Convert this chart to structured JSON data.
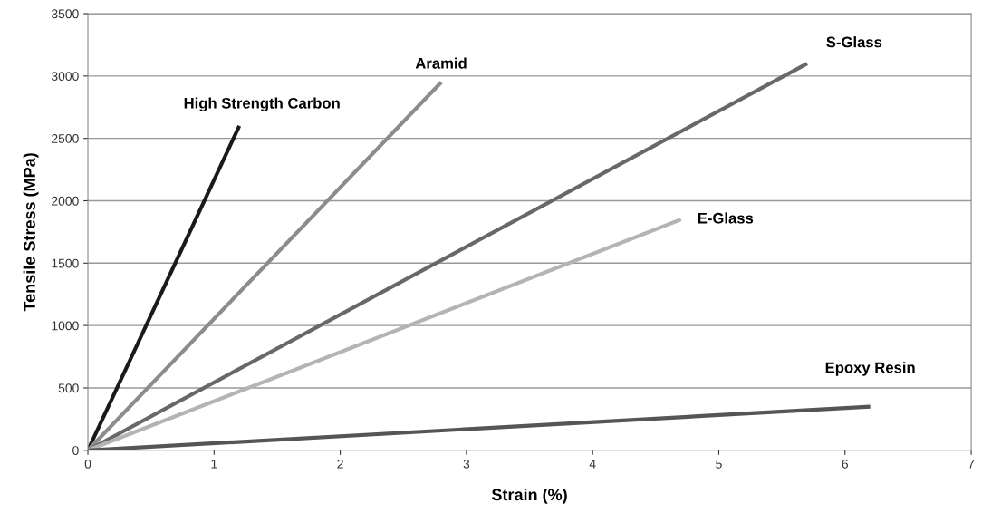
{
  "chart_data": {
    "type": "line",
    "xlabel": "Strain (%)",
    "ylabel": "Tensile Stress (MPa)",
    "xlim": [
      0,
      7
    ],
    "xticks": [
      0,
      1,
      2,
      3,
      4,
      5,
      6,
      7
    ],
    "ylim": [
      0,
      3500
    ],
    "yticks": [
      0,
      500,
      1000,
      1500,
      2000,
      2500,
      3000,
      3500
    ],
    "grid": "y",
    "marker": "none",
    "line_style": "solid",
    "series": [
      {
        "name": "High Strength Carbon",
        "color": "#1a1a1a",
        "x": [
          0,
          1.2
        ],
        "values": [
          0,
          2600
        ]
      },
      {
        "name": "Aramid",
        "color": "#8c8c8c",
        "x": [
          0,
          2.8
        ],
        "values": [
          0,
          2950
        ]
      },
      {
        "name": "S-Glass",
        "color": "#686868",
        "x": [
          0,
          5.7
        ],
        "values": [
          0,
          3100
        ]
      },
      {
        "name": "E-Glass",
        "color": "#b4b4b4",
        "x": [
          0,
          4.7
        ],
        "values": [
          0,
          1850
        ]
      },
      {
        "name": "Epoxy Resin",
        "color": "#555555",
        "x": [
          0,
          6.2
        ],
        "values": [
          0,
          350
        ]
      }
    ]
  }
}
